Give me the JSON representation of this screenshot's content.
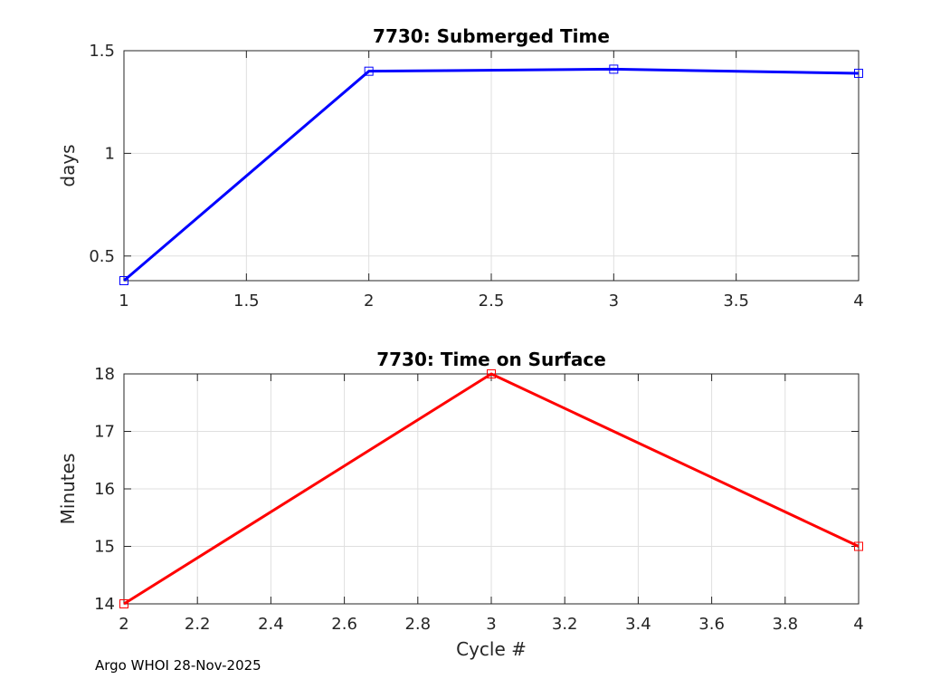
{
  "footer_text": "Argo WHOI 28-Nov-2025",
  "chart_data": [
    {
      "type": "line",
      "title": "7730: Submerged Time",
      "xlabel": "",
      "ylabel": "days",
      "xlim": [
        1,
        4
      ],
      "ylim": [
        0.38,
        1.5
      ],
      "xticks": [
        1,
        1.5,
        2,
        2.5,
        3,
        3.5,
        4
      ],
      "xtick_labels": [
        "1",
        "1.5",
        "2",
        "2.5",
        "3",
        "3.5",
        "4"
      ],
      "yticks": [
        0.5,
        1,
        1.5
      ],
      "ytick_labels": [
        "0.5",
        "1",
        "1.5"
      ],
      "grid": true,
      "series": [
        {
          "name": "Submerged Time",
          "color": "#0000ff",
          "marker": "square",
          "x": [
            1,
            2,
            3,
            4
          ],
          "y": [
            0.38,
            1.4,
            1.41,
            1.39
          ]
        }
      ]
    },
    {
      "type": "line",
      "title": "7730: Time on Surface",
      "xlabel": "Cycle #",
      "ylabel": "Minutes",
      "xlim": [
        2,
        4
      ],
      "ylim": [
        14,
        18
      ],
      "xticks": [
        2,
        2.2,
        2.4,
        2.6,
        2.8,
        3,
        3.2,
        3.4,
        3.6,
        3.8,
        4
      ],
      "xtick_labels": [
        "2",
        "2.2",
        "2.4",
        "2.6",
        "2.8",
        "3",
        "3.2",
        "3.4",
        "3.6",
        "3.8",
        "4"
      ],
      "yticks": [
        14,
        15,
        16,
        17,
        18
      ],
      "ytick_labels": [
        "14",
        "15",
        "16",
        "17",
        "18"
      ],
      "grid": true,
      "series": [
        {
          "name": "Time on Surface",
          "color": "#ff0000",
          "marker": "square",
          "x": [
            2,
            3,
            4
          ],
          "y": [
            14,
            18,
            15
          ]
        }
      ]
    }
  ]
}
